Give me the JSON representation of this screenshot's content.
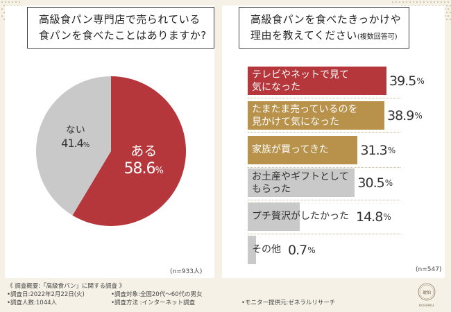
{
  "left": {
    "question_line1": "高級食パン専門店で売られている",
    "question_line2": "食パンを食べたことはありますか?",
    "n_label": "(n=933人)"
  },
  "right": {
    "question_line1": "高級食パンを食べたきっかけや",
    "question_line2_main": "理由を教えてください",
    "question_line2_sub": "(複数回答可)",
    "n_label": "(n=547)"
  },
  "chart_data": [
    {
      "type": "pie",
      "title": "高級食パン専門店で売られている食パンを食べたことはありますか?",
      "slices": [
        {
          "label": "ある",
          "value": 58.6,
          "display": "58.6",
          "unit": "%",
          "color": "#b5373c"
        },
        {
          "label": "ない",
          "value": 41.4,
          "display": "41.4",
          "unit": "%",
          "color": "#c9c9c9"
        }
      ],
      "n": "n=933人"
    },
    {
      "type": "bar",
      "orientation": "horizontal",
      "title": "高級食パンを食べたきっかけや理由を教えてください(複数回答可)",
      "max_value": 39.5,
      "bars": [
        {
          "label": "テレビやネットで見て\n気になった",
          "value": 39.5,
          "display": "39.5",
          "unit": "%",
          "color": "#b5373c",
          "text_color": "#ffffff"
        },
        {
          "label": "たまたま売っているのを\n見かけて気になった",
          "value": 38.9,
          "display": "38.9",
          "unit": "%",
          "color": "#b8924a",
          "text_color": "#ffffff"
        },
        {
          "label": "家族が買ってきた",
          "value": 31.3,
          "display": "31.3",
          "unit": "%",
          "color": "#b8924a",
          "text_color": "#ffffff"
        },
        {
          "label": "お土産やギフトとして\nもらった",
          "value": 30.5,
          "display": "30.5",
          "unit": "%",
          "color": "#c9c9c9",
          "text_color": "#333333"
        },
        {
          "label": "プチ贅沢がしたかった",
          "value": 14.8,
          "display": "14.8",
          "unit": "%",
          "color": "#c9c9c9",
          "text_color": "#333333"
        },
        {
          "label": "その他",
          "value": 0.7,
          "display": "0.7",
          "unit": "%",
          "color": "#c9c9c9",
          "text_color": "#333333"
        }
      ],
      "n": "n=547"
    }
  ],
  "footer": {
    "survey_title": "《 調査概要:「高級食パン」に関する調査 》",
    "date": "•調査日:2022年2月22日(火)",
    "target": "•調査対象:全国20代〜60代の男女",
    "respondents": "•調査人数:1044人",
    "method": "•調査方法 :インターネット調査",
    "provider": "•モニター提供元:ゼネラルリサーチ",
    "logo_text": "KOHAKU",
    "logo_mark": "琥珀"
  },
  "colors": {
    "red": "#b5373c",
    "gold": "#b8924a",
    "gray": "#c9c9c9",
    "background": "#f6f1e6"
  }
}
